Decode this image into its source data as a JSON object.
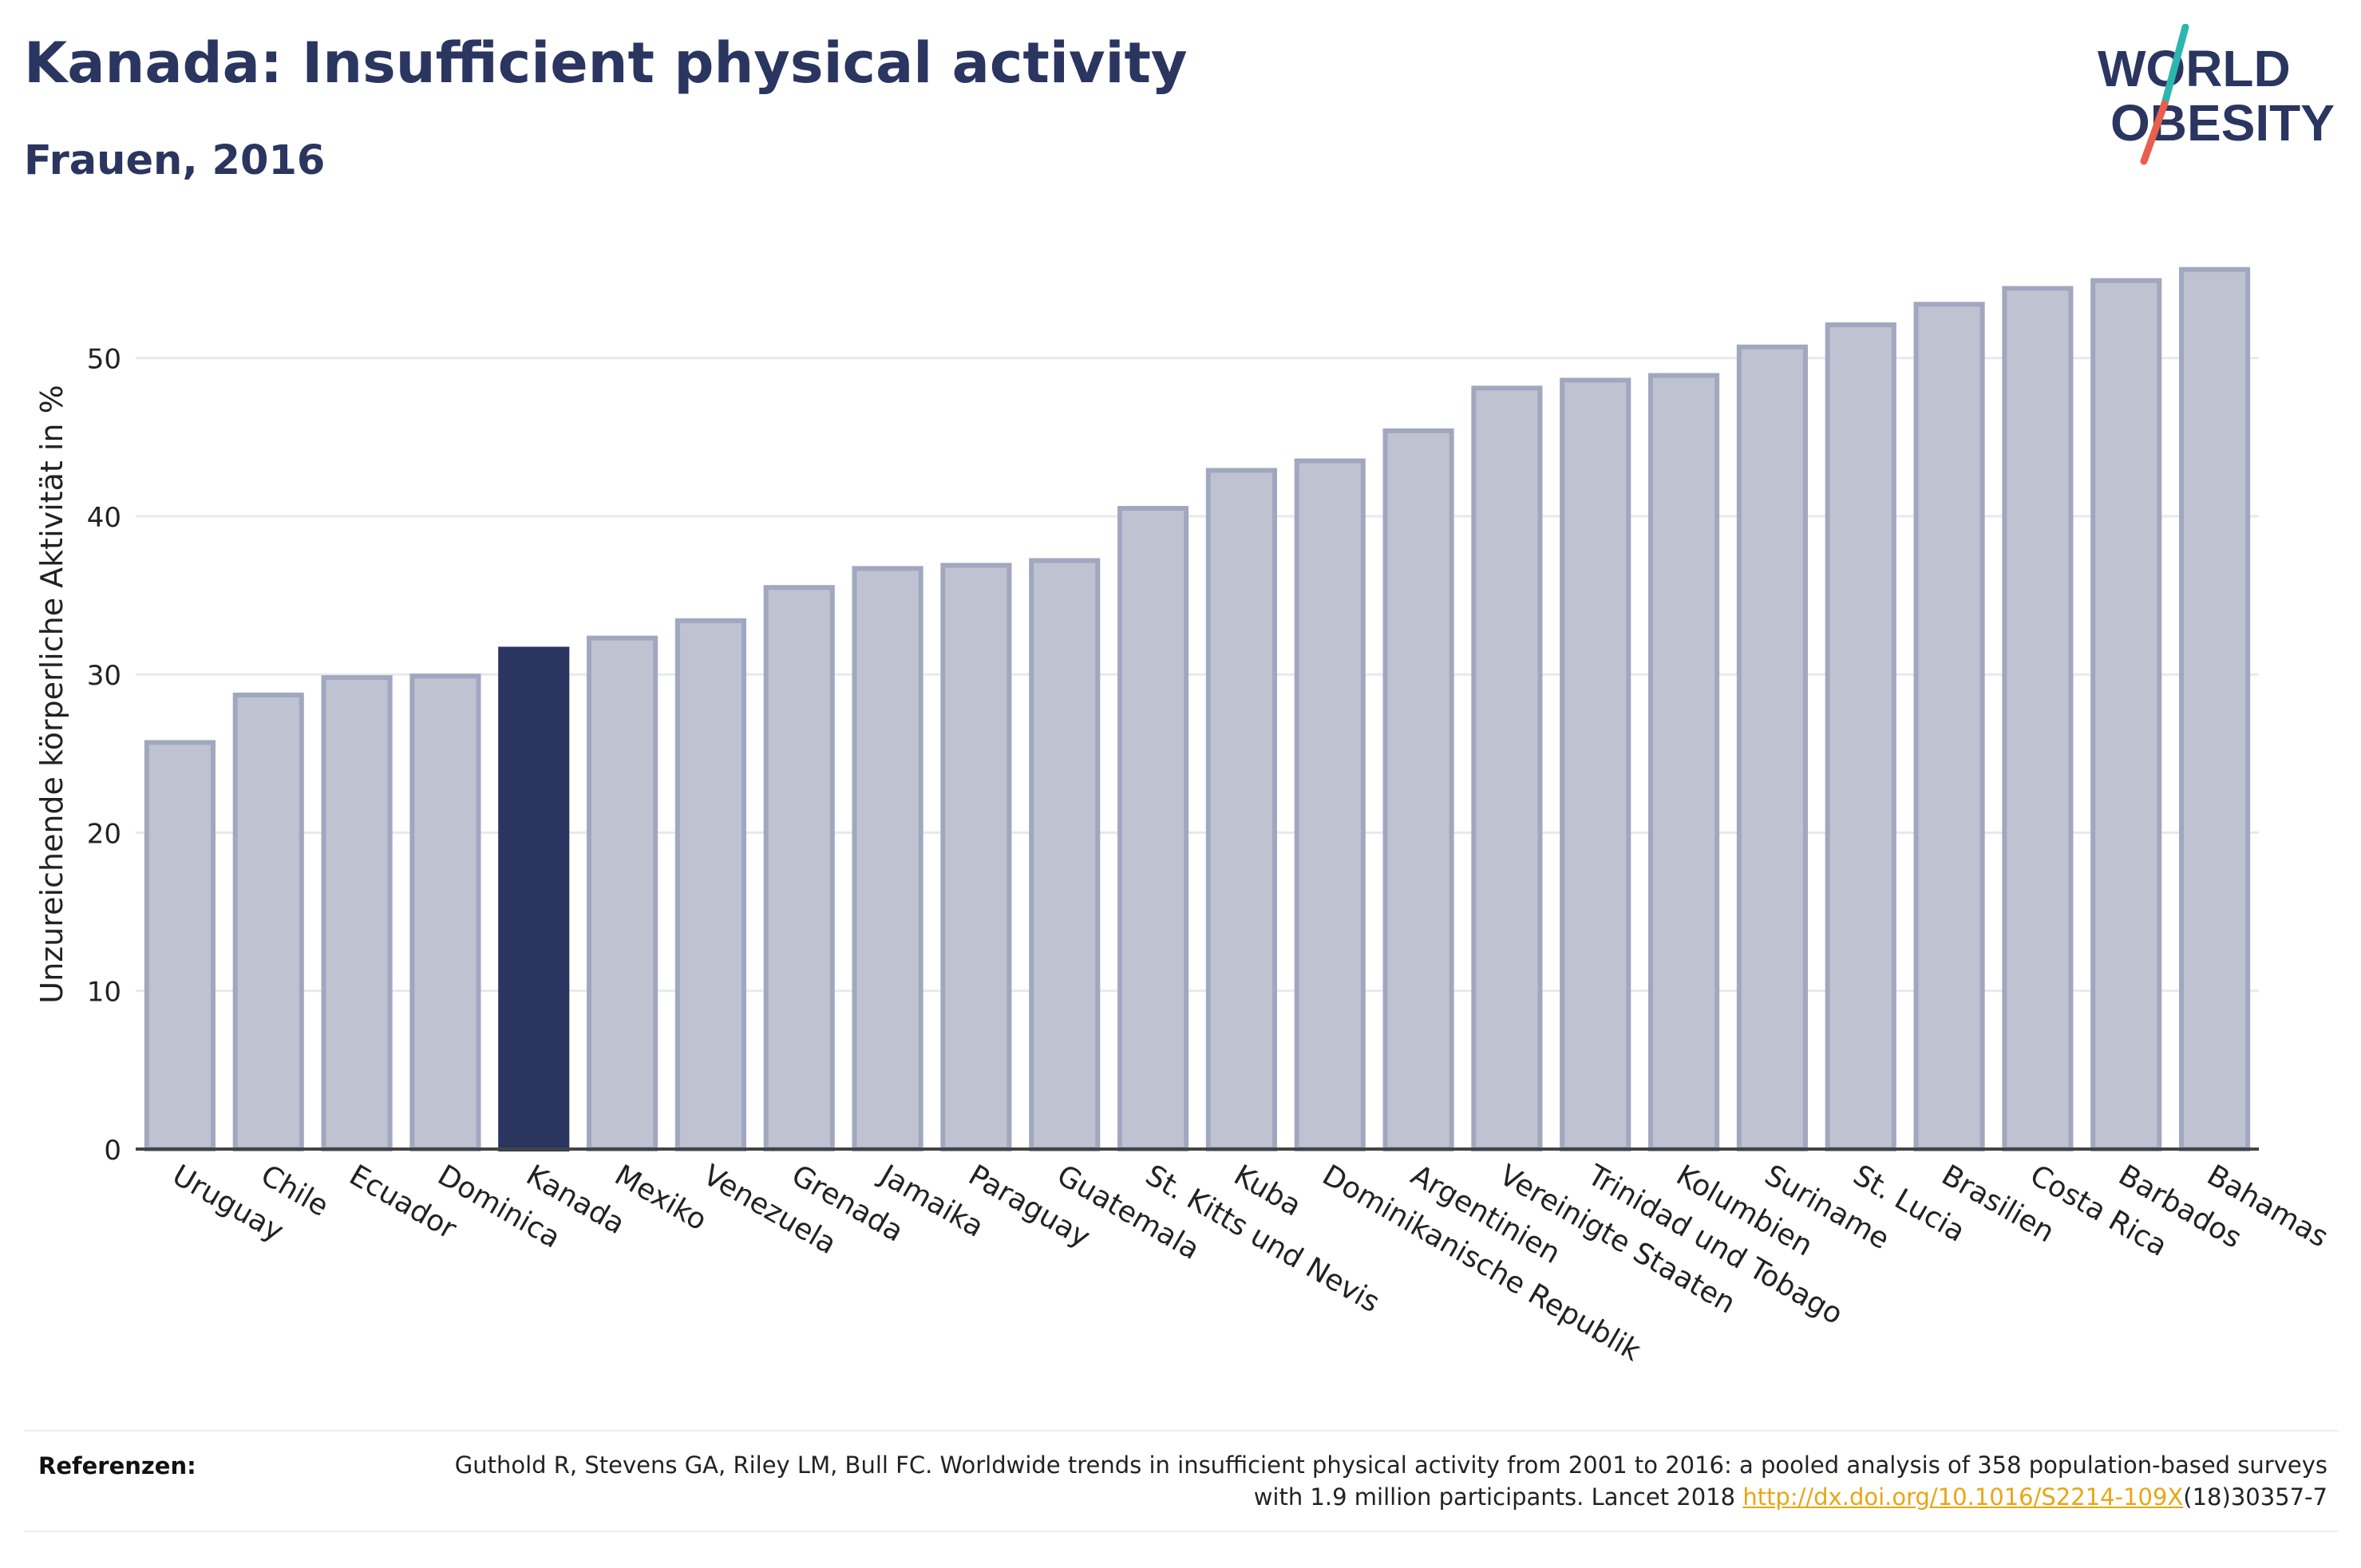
{
  "header": {
    "title": "Kanada: Insufficient physical activity",
    "subtitle": "Frauen, 2016"
  },
  "logo": {
    "line1": "WORLD",
    "line2": "OBESITY",
    "colors": {
      "text": "#2a3560",
      "slash_top": "#2bb6b0",
      "slash_bottom": "#e8604c"
    }
  },
  "chart_data": {
    "type": "bar",
    "ylabel": "Unzureichende körperliche Aktivität in %",
    "xlabel": "",
    "ylim": [
      0,
      57.5
    ],
    "yticks": [
      0,
      10,
      20,
      30,
      40,
      50
    ],
    "grid": true,
    "highlight": "Kanada",
    "colors": {
      "bar": "#bfc3d1",
      "bar_stroke": "#a1a7bf",
      "highlight": "#2a3560",
      "grid": "#e9e9ec"
    },
    "categories": [
      "Uruguay",
      "Chile",
      "Ecuador",
      "Dominica",
      "Kanada",
      "Mexiko",
      "Venezuela",
      "Grenada",
      "Jamaika",
      "Paraguay",
      "Guatemala",
      "St. Kitts und Nevis",
      "Kuba",
      "Dominikanische Republik",
      "Argentinien",
      "Vereinigte Staaten",
      "Trinidad und Tobago",
      "Kolumbien",
      "Suriname",
      "St. Lucia",
      "Brasilien",
      "Costa Rica",
      "Barbados",
      "Bahamas"
    ],
    "values": [
      25.7,
      28.7,
      29.8,
      29.9,
      31.6,
      32.3,
      33.4,
      35.5,
      36.7,
      36.9,
      37.2,
      40.5,
      42.9,
      43.5,
      45.4,
      48.1,
      48.6,
      48.9,
      50.7,
      52.1,
      53.4,
      54.4,
      54.9,
      55.6
    ]
  },
  "footer": {
    "label": "Referenzen:",
    "citation_part1": "Guthold R, Stevens GA, Riley LM, Bull FC. Worldwide trends in insufficient physical activity from 2001 to 2016: a pooled analysis of 358 population-based surveys with 1.9 million participants. Lancet 2018 ",
    "link_text": "http://dx.doi.org/10.1016/S2214-109X",
    "citation_part2": "(18)30357-7"
  }
}
